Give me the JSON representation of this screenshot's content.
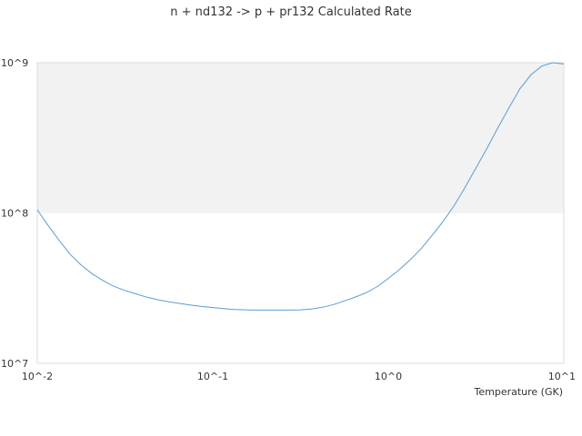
{
  "chart_data": {
    "type": "line",
    "title": "n + nd132 -> p + pr132 Calculated Rate",
    "xlabel": "Temperature (GK)",
    "ylabel": "",
    "x_scale": "log",
    "y_scale": "log",
    "xlim": [
      0.01,
      10
    ],
    "ylim": [
      10000000,
      1000000000
    ],
    "x_ticks": [
      "10^-2",
      "10^-1",
      "10^0",
      "10^1"
    ],
    "y_ticks": [
      "10^7",
      "10^8",
      "10^9"
    ],
    "grid": false,
    "legend": "none",
    "series": [
      {
        "color": "#5b9bd5",
        "x": [
          0.01,
          0.0115,
          0.0133,
          0.0154,
          0.0178,
          0.0205,
          0.0237,
          0.0274,
          0.0316,
          0.0365,
          0.0422,
          0.0487,
          0.0562,
          0.0649,
          0.075,
          0.0866,
          0.1,
          0.1155,
          0.1334,
          0.154,
          0.1778,
          0.2054,
          0.2371,
          0.2738,
          0.3162,
          0.3652,
          0.4217,
          0.487,
          0.5623,
          0.6494,
          0.7499,
          0.866,
          1.0,
          1.155,
          1.334,
          1.54,
          1.778,
          2.054,
          2.371,
          2.738,
          3.162,
          3.652,
          4.217,
          4.87,
          5.623,
          6.494,
          7.499,
          8.66,
          10.0
        ],
        "y": [
          105000000,
          83000000,
          66000000,
          53000000,
          45000000,
          39500000,
          35500000,
          32500000,
          30500000,
          29000000,
          27500000,
          26500000,
          25700000,
          25000000,
          24400000,
          23900000,
          23500000,
          23100000,
          22800000,
          22700000,
          22600000,
          22600000,
          22600000,
          22600000,
          22700000,
          23000000,
          23600000,
          24600000,
          26000000,
          27600000,
          29500000,
          32400000,
          36700000,
          42000000,
          48900000,
          58000000,
          71000000,
          88000000,
          112000000,
          148000000,
          200000000,
          270000000,
          370000000,
          500000000,
          670000000,
          830000000,
          950000000,
          1000000000,
          980000000
        ]
      }
    ]
  }
}
